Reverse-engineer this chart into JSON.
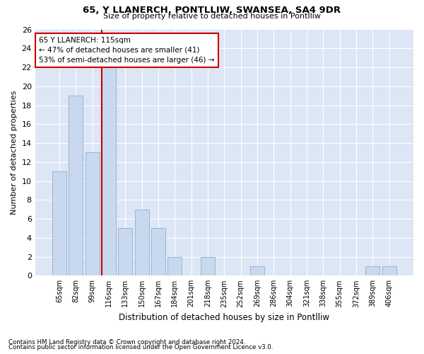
{
  "title1": "65, Y LLANERCH, PONTLLIW, SWANSEA, SA4 9DR",
  "title2": "Size of property relative to detached houses in Pontlliw",
  "xlabel": "Distribution of detached houses by size in Pontlliw",
  "ylabel": "Number of detached properties",
  "categories": [
    "65sqm",
    "82sqm",
    "99sqm",
    "116sqm",
    "133sqm",
    "150sqm",
    "167sqm",
    "184sqm",
    "201sqm",
    "218sqm",
    "235sqm",
    "252sqm",
    "269sqm",
    "286sqm",
    "304sqm",
    "321sqm",
    "338sqm",
    "355sqm",
    "372sqm",
    "389sqm",
    "406sqm"
  ],
  "values": [
    11,
    19,
    13,
    22,
    5,
    7,
    5,
    2,
    0,
    2,
    0,
    0,
    1,
    0,
    0,
    0,
    0,
    0,
    0,
    1,
    1
  ],
  "bar_color": "#c8d8ee",
  "bar_edge_color": "#9ab5d5",
  "property_line_color": "#cc0000",
  "property_bin_index": 3,
  "annotation_line1": "65 Y LLANERCH: 115sqm",
  "annotation_line2": "← 47% of detached houses are smaller (41)",
  "annotation_line3": "53% of semi-detached houses are larger (46) →",
  "annotation_box_color": "#ffffff",
  "annotation_box_edge_color": "#cc0000",
  "ylim": [
    0,
    26
  ],
  "yticks": [
    0,
    2,
    4,
    6,
    8,
    10,
    12,
    14,
    16,
    18,
    20,
    22,
    24,
    26
  ],
  "footer1": "Contains HM Land Registry data © Crown copyright and database right 2024.",
  "footer2": "Contains public sector information licensed under the Open Government Licence v3.0.",
  "bg_color": "#ffffff",
  "plot_bg_color": "#dce6f5"
}
